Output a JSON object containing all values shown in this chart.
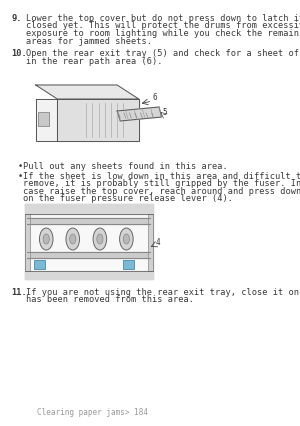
{
  "bg_color": "#ffffff",
  "text_color": "#3a3a3a",
  "footer_text": "Clearing paper jams> 184",
  "item9_num": "9.",
  "item9_text": "Lower the top cover but do not press down to latch it\nclosed yet. This will protect the drums from excessive\nexposure to room lighting while you check the remaining\nareas for jammed sheets.",
  "item10_num": "10.",
  "item10_text": "Open the rear exit tray (5) and check for a sheet of paper\nin the rear path area (6).",
  "bullet1": "Pull out any sheets found in this area.",
  "bullet2_line1": "If the sheet is low down in this area and difficult to",
  "bullet2_line2": "remove, it is probably still gripped by the fuser. In this",
  "bullet2_line3": "case raise the top cover, reach around and press down",
  "bullet2_line4": "on the fuser pressure release lever (4).",
  "item11_num": "11.",
  "item11_text": "If you are not using the rear exit tray, close it once paper\nhas been removed from this area.",
  "font_size_main": 6.2,
  "font_size_footer": 5.5,
  "font_family": "monospace"
}
